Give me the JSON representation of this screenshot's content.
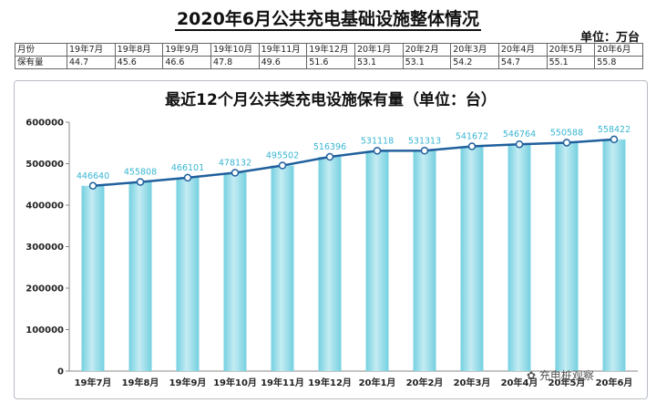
{
  "header": {
    "title": "2020年6月公共充电基础设施整体情况",
    "unit": "单位：万台"
  },
  "table": {
    "row1_label": "月份",
    "row2_label": "保有量",
    "months": [
      "19年7月",
      "19年8月",
      "19年9月",
      "19年10月",
      "19年11月",
      "19年12月",
      "20年1月",
      "20年2月",
      "20年3月",
      "20年4月",
      "20年5月",
      "20年6月"
    ],
    "values": [
      "44.7",
      "45.6",
      "46.6",
      "47.8",
      "49.6",
      "51.6",
      "53.1",
      "53.1",
      "54.2",
      "54.7",
      "55.1",
      "55.8"
    ]
  },
  "watermark": "充电桩观察",
  "colors": {
    "bar": "#74d0e0",
    "bar_highlight": "#c4ecf3",
    "line": "#1f5f9c",
    "data_label": "#38b6d2"
  },
  "chart_data": {
    "type": "bar",
    "title": "最近12个月公共类充电设施保有量（单位：台）",
    "categories": [
      "19年7月",
      "19年8月",
      "19年9月",
      "19年10月",
      "19年11月",
      "19年12月",
      "20年1月",
      "20年2月",
      "20年3月",
      "20年4月",
      "20年5月",
      "20年6月"
    ],
    "values": [
      446640,
      455808,
      466101,
      478132,
      495502,
      516396,
      531118,
      531313,
      541672,
      546764,
      550588,
      558422
    ],
    "overlay": "line",
    "ylim": [
      0,
      600000
    ],
    "yticks": [
      0,
      100000,
      200000,
      300000,
      400000,
      500000,
      600000
    ],
    "grid": false,
    "legend": "none"
  }
}
